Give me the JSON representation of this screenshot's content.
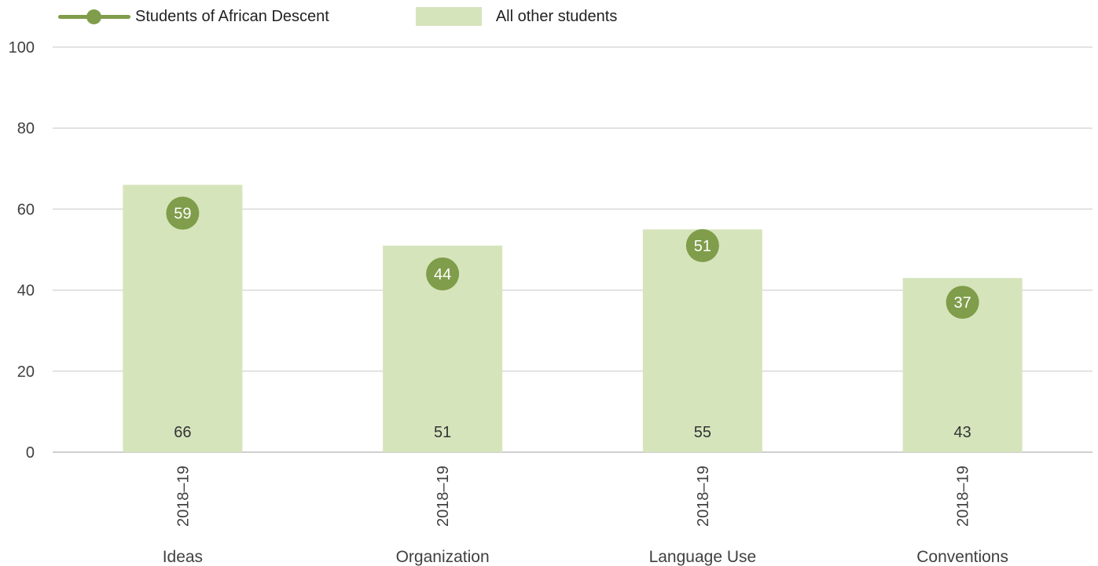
{
  "chart_data": {
    "type": "bar",
    "categories": [
      "Ideas",
      "Organization",
      "Language Use",
      "Conventions"
    ],
    "period_labels": [
      "2018–19",
      "2018–19",
      "2018–19",
      "2018–19"
    ],
    "series": [
      {
        "name": "All other students",
        "type": "bar",
        "values": [
          66,
          51,
          55,
          43
        ],
        "color": "#d6e4bc"
      },
      {
        "name": "Students of African Descent",
        "type": "marker",
        "values": [
          59,
          44,
          51,
          37
        ],
        "color": "#7f9d4a"
      }
    ],
    "yticks": [
      0,
      20,
      40,
      60,
      80,
      100
    ],
    "ylim": [
      0,
      100
    ],
    "grid": true,
    "legend_position": "top-left"
  }
}
